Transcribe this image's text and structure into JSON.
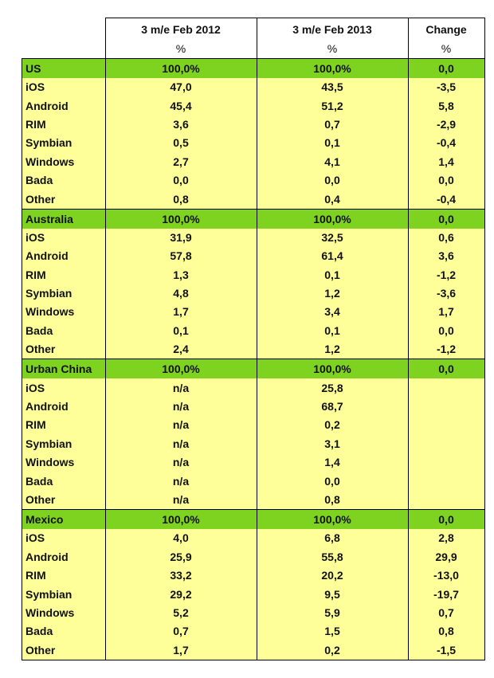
{
  "header": {
    "col1_line1": "3 m/e Feb 2012",
    "col1_line2": "%",
    "col2_line1": "3 m/e Feb 2013",
    "col2_line2": "%",
    "col3_line1": "Change",
    "col3_line2": "%"
  },
  "sections": [
    {
      "name": "US",
      "v2012": "100,0%",
      "v2013": "100,0%",
      "change": "0,0",
      "rows": [
        {
          "name": "iOS",
          "v2012": "47,0",
          "v2013": "43,5",
          "change": "-3,5"
        },
        {
          "name": "Android",
          "v2012": "45,4",
          "v2013": "51,2",
          "change": "5,8"
        },
        {
          "name": "RIM",
          "v2012": "3,6",
          "v2013": "0,7",
          "change": "-2,9"
        },
        {
          "name": "Symbian",
          "v2012": "0,5",
          "v2013": "0,1",
          "change": "-0,4"
        },
        {
          "name": "Windows",
          "v2012": "2,7",
          "v2013": "4,1",
          "change": "1,4"
        },
        {
          "name": "Bada",
          "v2012": "0,0",
          "v2013": "0,0",
          "change": "0,0"
        },
        {
          "name": "Other",
          "v2012": "0,8",
          "v2013": "0,4",
          "change": "-0,4"
        }
      ]
    },
    {
      "name": "Australia",
      "v2012": "100,0%",
      "v2013": "100,0%",
      "change": "0,0",
      "rows": [
        {
          "name": "iOS",
          "v2012": "31,9",
          "v2013": "32,5",
          "change": "0,6"
        },
        {
          "name": "Android",
          "v2012": "57,8",
          "v2013": "61,4",
          "change": "3,6"
        },
        {
          "name": "RIM",
          "v2012": "1,3",
          "v2013": "0,1",
          "change": "-1,2"
        },
        {
          "name": "Symbian",
          "v2012": "4,8",
          "v2013": "1,2",
          "change": "-3,6"
        },
        {
          "name": "Windows",
          "v2012": "1,7",
          "v2013": "3,4",
          "change": "1,7"
        },
        {
          "name": "Bada",
          "v2012": "0,1",
          "v2013": "0,1",
          "change": "0,0"
        },
        {
          "name": "Other",
          "v2012": "2,4",
          "v2013": "1,2",
          "change": "-1,2"
        }
      ]
    },
    {
      "name": "Urban China",
      "v2012": "100,0%",
      "v2013": "100,0%",
      "change": "0,0",
      "rows": [
        {
          "name": "iOS",
          "v2012": "n/a",
          "v2013": "25,8",
          "change": ""
        },
        {
          "name": "Android",
          "v2012": "n/a",
          "v2013": "68,7",
          "change": ""
        },
        {
          "name": "RIM",
          "v2012": "n/a",
          "v2013": "0,2",
          "change": ""
        },
        {
          "name": "Symbian",
          "v2012": "n/a",
          "v2013": "3,1",
          "change": ""
        },
        {
          "name": "Windows",
          "v2012": "n/a",
          "v2013": "1,4",
          "change": ""
        },
        {
          "name": "Bada",
          "v2012": "n/a",
          "v2013": "0,0",
          "change": ""
        },
        {
          "name": "Other",
          "v2012": "n/a",
          "v2013": "0,8",
          "change": ""
        }
      ]
    },
    {
      "name": "Mexico",
      "v2012": "100,0%",
      "v2013": "100,0%",
      "change": "0,0",
      "rows": [
        {
          "name": "iOS",
          "v2012": "4,0",
          "v2013": "6,8",
          "change": "2,8"
        },
        {
          "name": "Android",
          "v2012": "25,9",
          "v2013": "55,8",
          "change": "29,9"
        },
        {
          "name": "RIM",
          "v2012": "33,2",
          "v2013": "20,2",
          "change": "-13,0"
        },
        {
          "name": "Symbian",
          "v2012": "29,2",
          "v2013": "9,5",
          "change": "-19,7"
        },
        {
          "name": "Windows",
          "v2012": "5,2",
          "v2013": "5,9",
          "change": "0,7"
        },
        {
          "name": "Bada",
          "v2012": "0,7",
          "v2013": "1,5",
          "change": "0,8"
        },
        {
          "name": "Other",
          "v2012": "1,7",
          "v2013": "0,2",
          "change": "-1,5"
        }
      ]
    }
  ]
}
